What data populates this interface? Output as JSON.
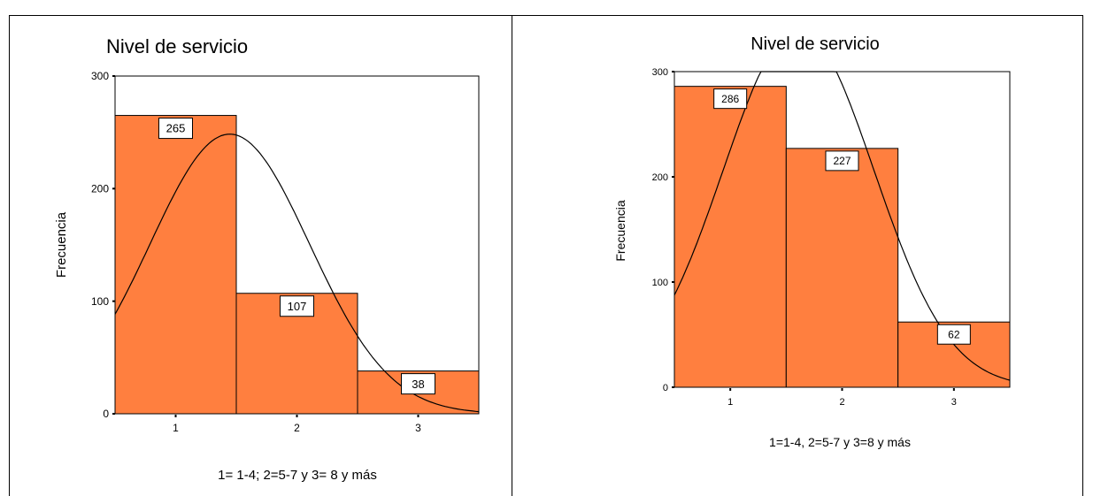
{
  "colors": {
    "bar_fill": "#FF7F3F",
    "bar_stroke": "#000000",
    "curve": "#000000",
    "background": "#FFFFFF"
  },
  "chart_data": [
    {
      "type": "bar",
      "title": "Nivel de servicio",
      "xlabel": "1= 1-4; 2=5-7 y 3= 8 y más",
      "ylabel": "Frecuencia",
      "categories": [
        "1",
        "2",
        "3"
      ],
      "values": [
        265,
        107,
        38
      ],
      "data_labels": [
        "265",
        "107",
        "38"
      ],
      "yticks": [
        0,
        100,
        200,
        300
      ],
      "ylim": [
        0,
        300
      ],
      "overlay": "normal curve",
      "grid": false,
      "legend": "none"
    },
    {
      "type": "bar",
      "title": "Nivel de servicio",
      "xlabel": "1=1-4, 2=5-7 y 3=8 y más",
      "ylabel": "Frecuencia",
      "categories": [
        "1",
        "2",
        "3"
      ],
      "values": [
        286,
        227,
        62
      ],
      "data_labels": [
        "286",
        "227",
        "62"
      ],
      "yticks": [
        0,
        100,
        200,
        300
      ],
      "ylim": [
        0,
        300
      ],
      "overlay": "normal curve",
      "grid": false,
      "legend": "none"
    }
  ]
}
